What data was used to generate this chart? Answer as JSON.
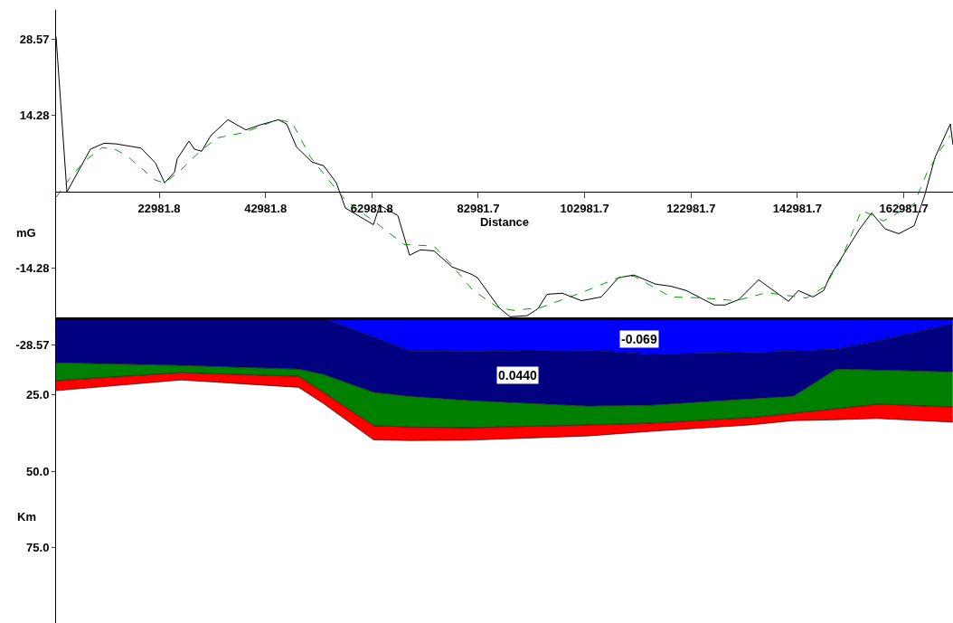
{
  "chart_data": [
    {
      "type": "line",
      "xlabel": "Distance",
      "ylabel": "mG",
      "xlim": [
        3600,
        172240
      ],
      "ylim": [
        -30,
        34
      ],
      "xticks": [
        22981.8,
        42981.8,
        62981.8,
        82981.7,
        102981.7,
        122981.7,
        142981.7,
        162981.7
      ],
      "yticks": [
        28.57,
        14.28,
        -14.28,
        -28.57
      ],
      "series": [
        {
          "color": "#000000",
          "line_style": "solid",
          "x": [
            3600,
            5640,
            10060,
            12610,
            14820,
            19580,
            22300,
            24000,
            25870,
            26380,
            28590,
            29610,
            30970,
            32670,
            35900,
            39300,
            41850,
            45420,
            46950,
            48820,
            51710,
            53920,
            56300,
            58000,
            63270,
            64460,
            67860,
            70070,
            72110,
            74660,
            78060,
            81800,
            82820,
            86900,
            88940,
            92170,
            94210,
            95910,
            98800,
            102370,
            106110,
            109340,
            112230,
            116310,
            119200,
            122090,
            127360,
            129400,
            131950,
            135690,
            141300,
            143170,
            145890,
            147930,
            149120,
            154560,
            156940,
            159490,
            162040,
            164930,
            166800,
            168840,
            171730,
            172240
          ],
          "values": [
            29,
            0,
            8.0,
            9.1,
            9.0,
            8.2,
            5.4,
            1.7,
            3.7,
            6.2,
            9.5,
            8.0,
            7.6,
            10.5,
            13.5,
            11.6,
            12.5,
            13.5,
            12.7,
            8.4,
            5.6,
            4.9,
            1.7,
            -3.0,
            -6.1,
            -2.5,
            -4.4,
            -11.8,
            -10.8,
            -11.0,
            -14.0,
            -15.4,
            -16.0,
            -21.6,
            -23.3,
            -23.1,
            -21.8,
            -19.1,
            -18.9,
            -20.3,
            -19.6,
            -16.0,
            -15.5,
            -17.2,
            -17.6,
            -18.4,
            -21.1,
            -21.1,
            -20.1,
            -16.4,
            -20.4,
            -18.4,
            -19.6,
            -18.4,
            -15.7,
            -7.1,
            -3.9,
            -6.9,
            -7.8,
            -6.3,
            -1.0,
            6.4,
            12.7,
            8.8
          ]
        },
        {
          "color": "#00a000",
          "line_style": "dashed",
          "x": [
            3600,
            6150,
            8870,
            12270,
            14820,
            16860,
            22300,
            24000,
            27060,
            30460,
            33860,
            38960,
            45250,
            47970,
            51370,
            55450,
            58170,
            63950,
            69050,
            74660,
            78060,
            81800,
            86730,
            89620,
            94720,
            102370,
            109340,
            112230,
            119200,
            125490,
            131440,
            137220,
            144700,
            148100,
            151160,
            155070,
            159150,
            164930,
            167310,
            169690,
            171730
          ],
          "values": [
            -1.0,
            2.5,
            5.7,
            8.3,
            7.9,
            6.8,
            2.2,
            1.7,
            4.1,
            7.4,
            10.1,
            11.1,
            13.5,
            13.0,
            6.6,
            1.5,
            -1.7,
            -5.9,
            -9.8,
            -10.1,
            -13.7,
            -18.2,
            -21.6,
            -22.1,
            -21.6,
            -18.8,
            -16.0,
            -15.7,
            -19.6,
            -19.8,
            -20.3,
            -18.8,
            -19.8,
            -17.7,
            -12.7,
            -3.4,
            -5.4,
            -2.2,
            3.5,
            7.6,
            10.5
          ]
        }
      ]
    },
    {
      "type": "area",
      "stacked": true,
      "ylabel": "Km",
      "xlim": [
        3600,
        172240
      ],
      "ylim": [
        99.7,
        0
      ],
      "yticks": [
        {
          "value": 25,
          "label": "25.0"
        },
        {
          "value": 50,
          "label": "50.0"
        },
        {
          "value": 75,
          "label": "75.0"
        }
      ],
      "tick_labels": "y",
      "x": [
        3600,
        27100,
        49200,
        53800,
        63300,
        70100,
        81500,
        103600,
        115500,
        134200,
        142200,
        150300,
        158000,
        172200
      ],
      "series": [
        {
          "color": "#0000ff",
          "values": [
            0,
            0,
            0,
            0,
            6.2,
            10.7,
            10.9,
            10.4,
            11.8,
            11.2,
            10.7,
            10.1,
            7.4,
            1.8
          ]
        },
        {
          "color": "#000080",
          "values": [
            14.5,
            15.4,
            16.6,
            18.3,
            18.0,
            14.8,
            16.0,
            18.3,
            16.6,
            15.1,
            14.8,
            6.5,
            9.5,
            15.7
          ]
        },
        {
          "color": "#008000",
          "values": [
            5.9,
            2.4,
            2.4,
            5.9,
            10.9,
            10.1,
            8.9,
            6.2,
            5.9,
            6.2,
            5.6,
            13.0,
            11.2,
            11.5
          ]
        },
        {
          "color": "#ff0000",
          "values": [
            3.3,
            2.4,
            3.6,
            3.6,
            4.7,
            4.4,
            4.1,
            3.6,
            2.7,
            2.4,
            2.4,
            3.6,
            4.7,
            5.0
          ]
        }
      ],
      "annotations": [
        "-0.069",
        "0.0440"
      ]
    }
  ]
}
